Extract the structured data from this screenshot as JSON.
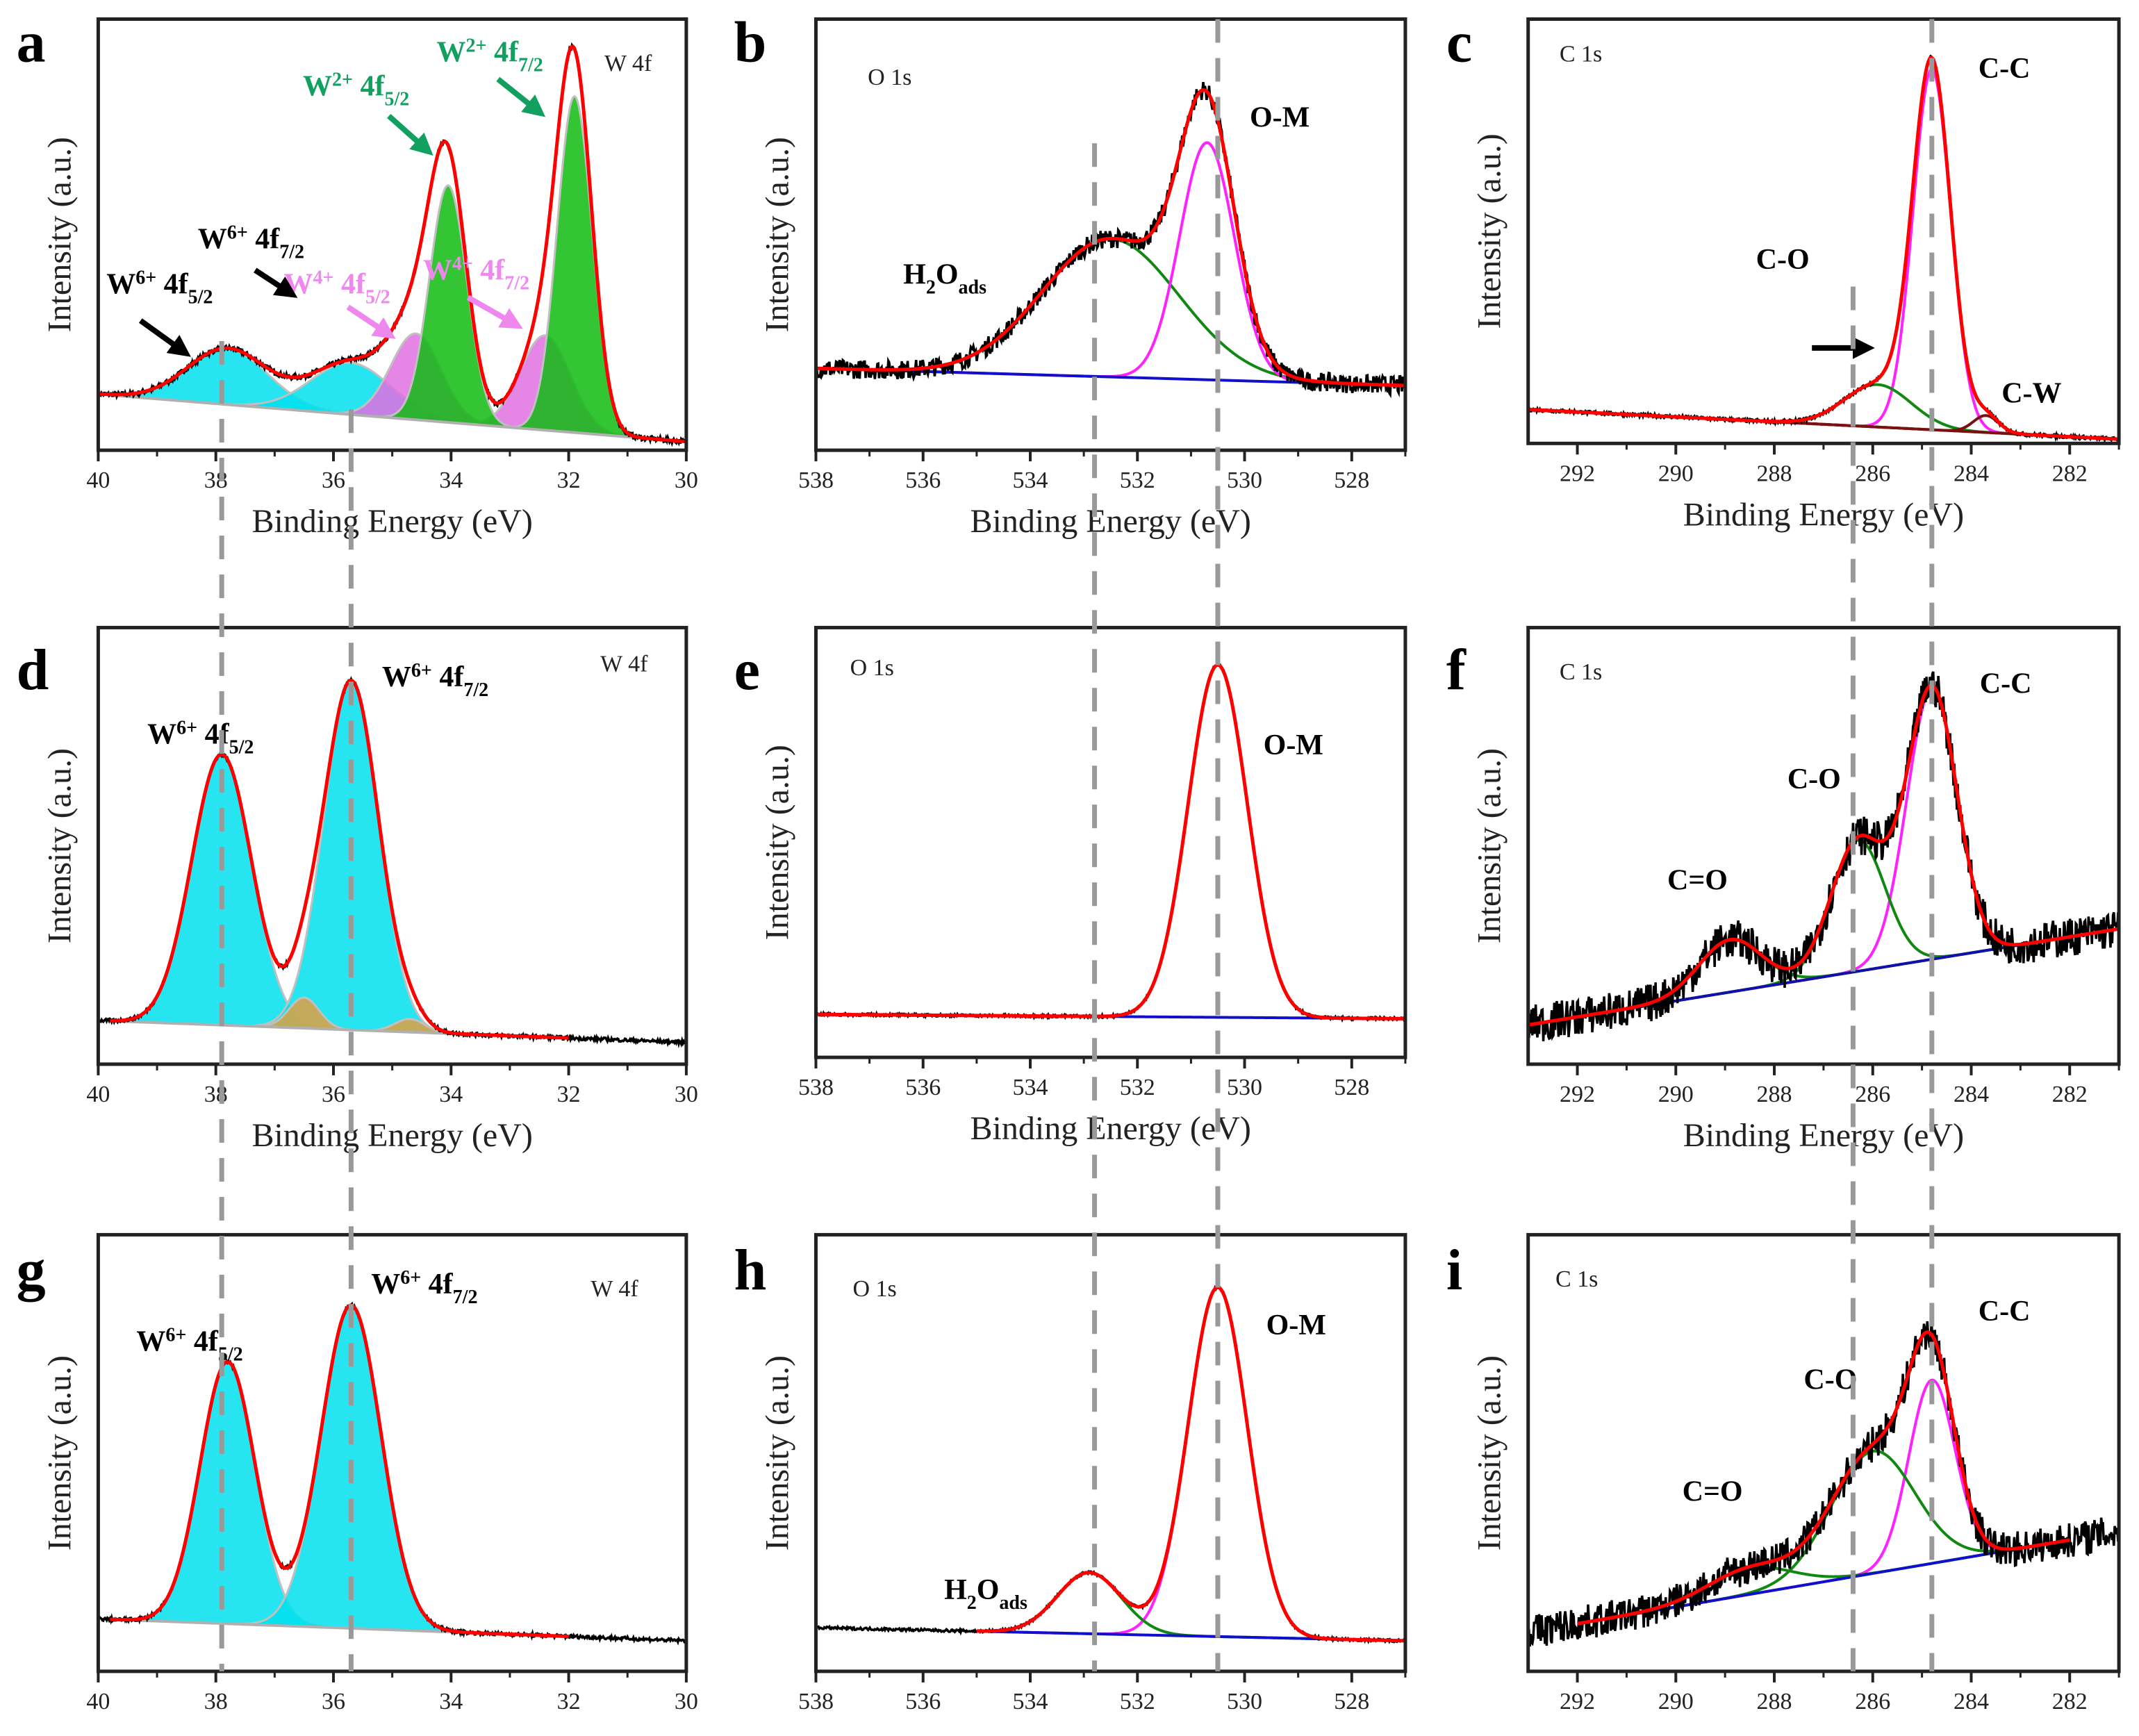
{
  "chart_data": [
    {
      "panel": "a",
      "type": "line",
      "title": "W 4f",
      "xlabel": "Binding Energy (eV)",
      "ylabel": "Intensity (a.u.)",
      "xlim": [
        40,
        30
      ],
      "ylim": [
        0,
        1
      ],
      "xticks": [
        40,
        38,
        36,
        34,
        32,
        30
      ],
      "grid": false,
      "noise_level": 0.006,
      "baseline": {
        "from": [
          40,
          0.13
        ],
        "to": [
          30,
          0.02
        ],
        "color": "#b0b0b0"
      },
      "peaks": [
        {
          "name": "W6+ 4f5/2",
          "center": 37.8,
          "height": 0.13,
          "fwhm": 1.6,
          "color": "#00e0ee",
          "fill": true
        },
        {
          "name": "W6+ 4f7/2",
          "center": 35.7,
          "height": 0.12,
          "fwhm": 1.6,
          "color": "#00e0ee",
          "fill": true
        },
        {
          "name": "W4+ 4f5/2",
          "center": 34.6,
          "height": 0.2,
          "fwhm": 1.0,
          "color": "#e070e0",
          "fill": true
        },
        {
          "name": "W4+ 4f7/2",
          "center": 32.4,
          "height": 0.22,
          "fwhm": 1.0,
          "color": "#e070e0",
          "fill": true
        },
        {
          "name": "W2+ 4f5/2",
          "center": 34.05,
          "height": 0.55,
          "fwhm": 0.75,
          "color": "#11bb11",
          "fill": true
        },
        {
          "name": "W2+ 4f7/2",
          "center": 31.9,
          "height": 0.78,
          "fwhm": 0.7,
          "color": "#11bb11",
          "fill": true
        }
      ],
      "annotations": [
        {
          "parts": [
            [
              "W",
              ""
            ],
            [
              "2+",
              "sup"
            ],
            [
              " 4f",
              ""
            ],
            [
              "5/2",
              "sub"
            ]
          ],
          "color": "#12a060"
        },
        {
          "parts": [
            [
              "W",
              ""
            ],
            [
              "2+",
              "sup"
            ],
            [
              " 4f",
              ""
            ],
            [
              "7/2",
              "sub"
            ]
          ],
          "color": "#12a060"
        },
        {
          "parts": [
            [
              "W",
              ""
            ],
            [
              "6+",
              "sup"
            ],
            [
              " 4f",
              ""
            ],
            [
              "7/2",
              "sub"
            ]
          ],
          "color": "#000000"
        },
        {
          "parts": [
            [
              "W",
              ""
            ],
            [
              "6+",
              "sup"
            ],
            [
              " 4f",
              ""
            ],
            [
              "5/2",
              "sub"
            ]
          ],
          "color": "#000000"
        },
        {
          "parts": [
            [
              "W",
              ""
            ],
            [
              "4+",
              "sup"
            ],
            [
              " 4f",
              ""
            ],
            [
              "5/2",
              "sub"
            ]
          ],
          "color": "#ee88ee"
        },
        {
          "parts": [
            [
              "W",
              ""
            ],
            [
              "4+",
              "sup"
            ],
            [
              " 4f",
              ""
            ],
            [
              "7/2",
              "sub"
            ]
          ],
          "color": "#ee88ee"
        }
      ]
    },
    {
      "panel": "b",
      "type": "line",
      "title": "O 1s",
      "xlabel": "Binding Energy (eV)",
      "ylabel": "Intensity (a.u.)",
      "xlim": [
        538,
        527
      ],
      "ylim": [
        0,
        1
      ],
      "xticks": [
        538,
        536,
        534,
        532,
        530,
        528
      ],
      "grid": false,
      "noise_level": 0.022,
      "baseline": {
        "from": [
          538,
          0.19
        ],
        "to": [
          527,
          0.15
        ],
        "color": "#1010cc"
      },
      "peaks": [
        {
          "name": "H2Oads",
          "center": 532.5,
          "height": 0.32,
          "fwhm": 3.0,
          "color": "#118811",
          "fill": false
        },
        {
          "name": "O-M",
          "center": 530.7,
          "height": 0.55,
          "fwhm": 1.2,
          "color": "#ff22ff",
          "fill": false
        }
      ],
      "annotations": [
        {
          "parts": [
            [
              "O-M",
              ""
            ]
          ],
          "color": "#000000"
        },
        {
          "parts": [
            [
              "H",
              ""
            ],
            [
              "2",
              "sub"
            ],
            [
              "O",
              ""
            ],
            [
              "ads",
              "sub"
            ]
          ],
          "color": "#000000"
        }
      ]
    },
    {
      "panel": "c",
      "type": "line",
      "title": "C 1s",
      "xlabel": "Binding Energy (eV)",
      "ylabel": "Intensity (a.u.)",
      "xlim": [
        293,
        281
      ],
      "ylim": [
        0,
        1
      ],
      "xticks": [
        292,
        290,
        288,
        286,
        284,
        282
      ],
      "grid": false,
      "noise_level": 0.004,
      "baseline": {
        "from": [
          293,
          0.08
        ],
        "to": [
          281,
          0.01
        ],
        "color": "#7a1010"
      },
      "peaks": [
        {
          "name": "C-C",
          "center": 284.8,
          "height": 0.85,
          "fwhm": 0.9,
          "color": "#ff22ff",
          "fill": false
        },
        {
          "name": "C-O",
          "center": 285.9,
          "height": 0.1,
          "fwhm": 1.6,
          "color": "#118811",
          "fill": false
        },
        {
          "name": "C-W",
          "center": 283.7,
          "height": 0.04,
          "fwhm": 0.6,
          "color": "#7a1010",
          "fill": false
        }
      ],
      "annotations": [
        {
          "parts": [
            [
              "C-C",
              ""
            ]
          ],
          "color": "#000000"
        },
        {
          "parts": [
            [
              "C-O",
              ""
            ]
          ],
          "color": "#000000"
        },
        {
          "parts": [
            [
              "C-W",
              ""
            ]
          ],
          "color": "#000000"
        }
      ]
    },
    {
      "panel": "d",
      "type": "line",
      "title": "W 4f",
      "xlabel": "Binding Energy (eV)",
      "ylabel": "Intensity (a.u.)",
      "xlim": [
        40,
        30
      ],
      "ylim": [
        0,
        1
      ],
      "xticks": [
        40,
        38,
        36,
        34,
        32,
        30
      ],
      "grid": false,
      "noise_level": 0.004,
      "fit_range": [
        39.8,
        32
      ],
      "baseline": {
        "from": [
          40,
          0.1
        ],
        "to": [
          30,
          0.05
        ],
        "color": "#b0b0b0"
      },
      "peaks": [
        {
          "name": "W6+ 4f5/2",
          "center": 37.9,
          "height": 0.62,
          "fwhm": 1.2,
          "color": "#00e0ee",
          "fill": true
        },
        {
          "name": "W6+ 4f7/2",
          "center": 35.7,
          "height": 0.8,
          "fwhm": 1.1,
          "color": "#00e0ee",
          "fill": true
        },
        {
          "name": "",
          "center": 36.5,
          "height": 0.07,
          "fwhm": 0.6,
          "color": "#e0a040",
          "fill": true
        },
        {
          "name": "",
          "center": 34.7,
          "height": 0.03,
          "fwhm": 0.6,
          "color": "#e0a040",
          "fill": true
        }
      ],
      "annotations": [
        {
          "parts": [
            [
              "W",
              ""
            ],
            [
              "6+",
              "sup"
            ],
            [
              " 4f",
              ""
            ],
            [
              "7/2",
              "sub"
            ]
          ],
          "color": "#000000"
        },
        {
          "parts": [
            [
              "W",
              ""
            ],
            [
              "6+",
              "sup"
            ],
            [
              " 4f",
              ""
            ],
            [
              "5/2",
              "sub"
            ]
          ],
          "color": "#000000"
        }
      ]
    },
    {
      "panel": "e",
      "type": "line",
      "title": "O 1s",
      "xlabel": "Binding Energy (eV)",
      "ylabel": "Intensity (a.u.)",
      "xlim": [
        538,
        527
      ],
      "ylim": [
        0,
        1
      ],
      "xticks": [
        538,
        536,
        534,
        532,
        530,
        528
      ],
      "grid": false,
      "noise_level": 0.003,
      "baseline": {
        "from": [
          538,
          0.1
        ],
        "to": [
          527,
          0.09
        ],
        "color": "#1010cc"
      },
      "peaks": [
        {
          "name": "O-M",
          "center": 530.5,
          "height": 0.82,
          "fwhm": 1.3,
          "color": "#ff0000",
          "fill": false
        }
      ],
      "annotations": [
        {
          "parts": [
            [
              "O-M",
              ""
            ]
          ],
          "color": "#000000"
        }
      ]
    },
    {
      "panel": "f",
      "type": "line",
      "title": "C 1s",
      "xlabel": "Binding Energy (eV)",
      "ylabel": "Intensity (a.u.)",
      "xlim": [
        293,
        281
      ],
      "ylim": [
        0,
        1
      ],
      "xticks": [
        292,
        290,
        288,
        286,
        284,
        282
      ],
      "grid": false,
      "noise_level": 0.045,
      "baseline": {
        "from": [
          293,
          0.09
        ],
        "to": [
          281,
          0.31
        ],
        "color": "#1010aa"
      },
      "peaks": [
        {
          "name": "C-C",
          "center": 284.8,
          "height": 0.62,
          "fwhm": 1.2,
          "color": "#ff22ff",
          "fill": false
        },
        {
          "name": "C-O",
          "center": 286.3,
          "height": 0.3,
          "fwhm": 1.3,
          "color": "#118811",
          "fill": false
        },
        {
          "name": "C=O",
          "center": 288.9,
          "height": 0.12,
          "fwhm": 1.5,
          "color": "#118811",
          "fill": false
        }
      ],
      "annotations": [
        {
          "parts": [
            [
              "C-C",
              ""
            ]
          ],
          "color": "#000000"
        },
        {
          "parts": [
            [
              "C-O",
              ""
            ]
          ],
          "color": "#000000"
        },
        {
          "parts": [
            [
              "C=O",
              ""
            ]
          ],
          "color": "#000000"
        }
      ]
    },
    {
      "panel": "g",
      "type": "line",
      "title": "W 4f",
      "xlabel": "",
      "ylabel": "Intensity (a.u.)",
      "xlim": [
        40,
        30
      ],
      "ylim": [
        0,
        1
      ],
      "xticks": [
        40,
        38,
        36,
        34,
        32,
        30
      ],
      "grid": false,
      "noise_level": 0.004,
      "fit_range": [
        39.8,
        32
      ],
      "baseline": {
        "from": [
          40,
          0.12
        ],
        "to": [
          30,
          0.07
        ],
        "color": "#b0b0b0"
      },
      "peaks": [
        {
          "name": "W6+ 4f5/2",
          "center": 37.8,
          "height": 0.6,
          "fwhm": 1.1,
          "color": "#00e0ee",
          "fill": true
        },
        {
          "name": "W6+ 4f7/2",
          "center": 35.7,
          "height": 0.74,
          "fwhm": 1.2,
          "color": "#00e0ee",
          "fill": true
        }
      ],
      "annotations": [
        {
          "parts": [
            [
              "W",
              ""
            ],
            [
              "6+",
              "sup"
            ],
            [
              " 4f",
              ""
            ],
            [
              "7/2",
              "sub"
            ]
          ],
          "color": "#000000"
        },
        {
          "parts": [
            [
              "W",
              ""
            ],
            [
              "6+",
              "sup"
            ],
            [
              " 4f",
              ""
            ],
            [
              "5/2",
              "sub"
            ]
          ],
          "color": "#000000"
        }
      ]
    },
    {
      "panel": "h",
      "type": "line",
      "title": "O 1s",
      "xlabel": "",
      "ylabel": "Intensity (a.u.)",
      "xlim": [
        538,
        527
      ],
      "ylim": [
        0,
        1
      ],
      "xticks": [
        538,
        536,
        534,
        532,
        530,
        528
      ],
      "grid": false,
      "noise_level": 0.003,
      "fit_range": [
        535,
        527
      ],
      "baseline": {
        "from": [
          538,
          0.1
        ],
        "to": [
          527,
          0.07
        ],
        "color": "#1010cc"
      },
      "peaks": [
        {
          "name": "O-M",
          "center": 530.5,
          "height": 0.8,
          "fwhm": 1.3,
          "color": "#ff22ff",
          "fill": false
        },
        {
          "name": "H2Oads",
          "center": 532.9,
          "height": 0.14,
          "fwhm": 1.4,
          "color": "#118811",
          "fill": false
        }
      ],
      "annotations": [
        {
          "parts": [
            [
              "O-M",
              ""
            ]
          ],
          "color": "#000000"
        },
        {
          "parts": [
            [
              "H",
              ""
            ],
            [
              "2",
              "sub"
            ],
            [
              "O",
              ""
            ],
            [
              "ads",
              "sub"
            ]
          ],
          "color": "#000000"
        }
      ]
    },
    {
      "panel": "i",
      "type": "line",
      "title": "C 1s",
      "xlabel": "",
      "ylabel": "Intensity (a.u.)",
      "xlim": [
        293,
        281
      ],
      "ylim": [
        0,
        1
      ],
      "xticks": [
        292,
        290,
        288,
        286,
        284,
        282
      ],
      "grid": false,
      "noise_level": 0.04,
      "fit_range": [
        292,
        282
      ],
      "baseline": {
        "from": [
          293,
          0.09
        ],
        "to": [
          281,
          0.32
        ],
        "color": "#1010cc"
      },
      "peaks": [
        {
          "name": "C-C",
          "center": 284.8,
          "height": 0.42,
          "fwhm": 1.1,
          "color": "#ff22ff",
          "fill": false
        },
        {
          "name": "C-O",
          "center": 286.0,
          "height": 0.28,
          "fwhm": 2.0,
          "color": "#118811",
          "fill": false
        },
        {
          "name": "C=O",
          "center": 288.5,
          "height": 0.06,
          "fwhm": 2.0,
          "color": "#118811",
          "fill": false
        }
      ],
      "annotations": [
        {
          "parts": [
            [
              "C-C",
              ""
            ]
          ],
          "color": "#000000"
        },
        {
          "parts": [
            [
              "C-O",
              ""
            ]
          ],
          "color": "#000000"
        },
        {
          "parts": [
            [
              "C=O",
              ""
            ]
          ],
          "color": "#000000"
        }
      ]
    }
  ],
  "reference_lines": {
    "W 4f": [
      37.9,
      35.7
    ],
    "O 1s": [
      532.8,
      530.5
    ],
    "C 1s": [
      286.4,
      284.8
    ],
    "color": "#999999"
  },
  "colors": {
    "raw": "#000000",
    "envelope": "#ff0000"
  }
}
